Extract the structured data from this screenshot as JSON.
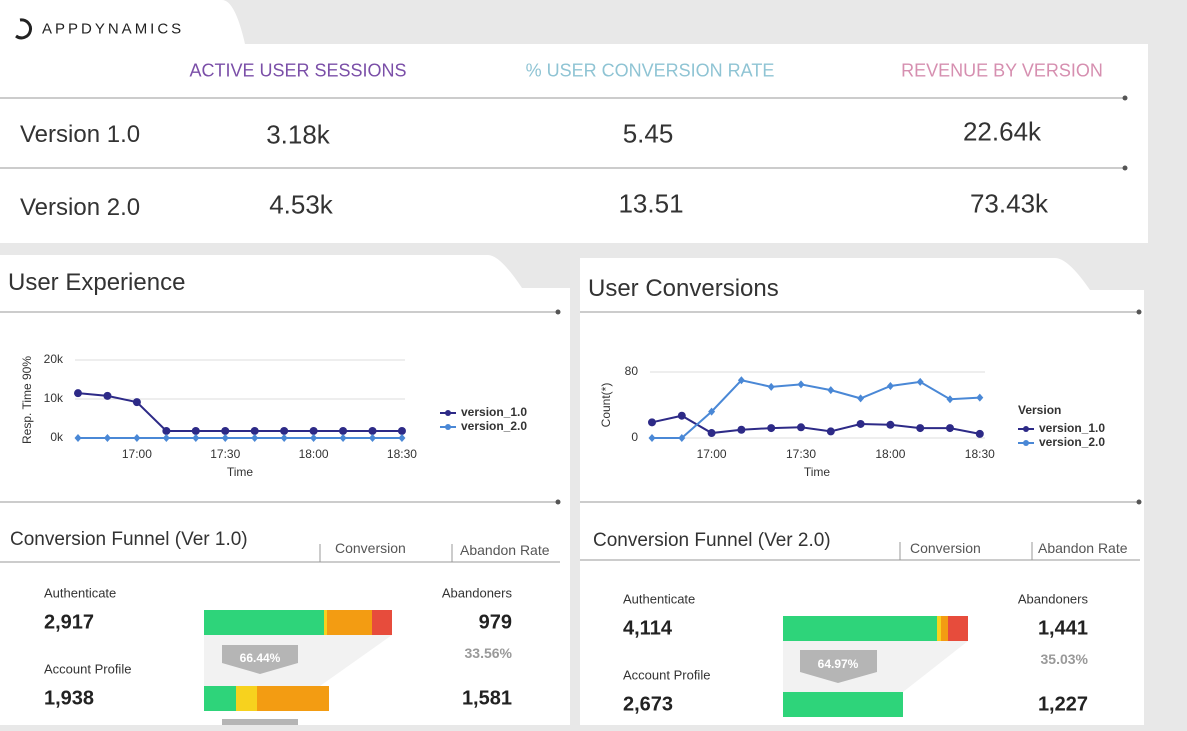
{
  "header": {
    "logo": "APPDYNAMICS"
  },
  "summary": {
    "columns": [
      "ACTIVE USER SESSIONS",
      "% USER CONVERSION RATE",
      "REVENUE BY VERSION"
    ],
    "rows": [
      {
        "label": "Version 1.0",
        "values": [
          "3.18k",
          "5.45",
          "22.64k"
        ]
      },
      {
        "label": "Version 2.0",
        "values": [
          "4.53k",
          "13.51",
          "73.43k"
        ]
      }
    ]
  },
  "user_experience": {
    "title": "User Experience",
    "chart": {
      "type": "line",
      "ylabel": "Resp. Time 90%",
      "xlabel": "Time",
      "x": [
        "16:40",
        "16:50",
        "17:00",
        "17:10",
        "17:20",
        "17:30",
        "17:40",
        "17:50",
        "18:00",
        "18:10",
        "18:20",
        "18:30"
      ],
      "xticks": [
        "17:00",
        "17:30",
        "18:00",
        "18:30"
      ],
      "ylim": [
        0,
        20000
      ],
      "yticks": [
        {
          "value": 0,
          "label": "0k"
        },
        {
          "value": 10000,
          "label": "10k"
        },
        {
          "value": 20000,
          "label": "20k"
        }
      ],
      "grid": true,
      "series": [
        {
          "name": "version_1.0",
          "color": "#2d2a87",
          "values": [
            11500,
            10800,
            9200,
            1800,
            1800,
            1800,
            1800,
            1800,
            1800,
            1800,
            1800,
            1800
          ]
        },
        {
          "name": "version_2.0",
          "color": "#4a88d6",
          "values": [
            0,
            0,
            0,
            0,
            0,
            0,
            0,
            0,
            0,
            0,
            0,
            0
          ]
        }
      ]
    }
  },
  "user_conversions": {
    "title": "User Conversions",
    "chart": {
      "type": "line",
      "ylabel": "Count(*)",
      "xlabel": "Time",
      "legend_title": "Version",
      "x": [
        "16:40",
        "16:50",
        "17:00",
        "17:10",
        "17:20",
        "17:30",
        "17:40",
        "17:50",
        "18:00",
        "18:10",
        "18:20",
        "18:30"
      ],
      "xticks": [
        "17:00",
        "17:30",
        "18:00",
        "18:30"
      ],
      "ylim": [
        0,
        80
      ],
      "yticks": [
        0,
        80
      ],
      "grid": true,
      "series": [
        {
          "name": "version_1.0",
          "color": "#2d2a87",
          "values": [
            19,
            27,
            6,
            10,
            12,
            13,
            8,
            17,
            16,
            12,
            12,
            5
          ]
        },
        {
          "name": "version_2.0",
          "color": "#4a88d6",
          "values": [
            0,
            0,
            32,
            70,
            62,
            65,
            58,
            48,
            63,
            68,
            47,
            49
          ]
        }
      ]
    }
  },
  "funnel_v1": {
    "title": "Conversion Funnel (Ver 1.0)",
    "columns": [
      "Conversion",
      "Abandon Rate"
    ],
    "abandoners_label": "Abandoners",
    "steps": [
      {
        "label": "Authenticate",
        "count": "2,917",
        "abandoners": "979",
        "abandon_pct": "33.56%",
        "conversion": "66.44%"
      },
      {
        "label": "Account Profile",
        "count": "1,938",
        "abandoners": "1,581"
      }
    ]
  },
  "funnel_v2": {
    "title": "Conversion Funnel (Ver 2.0)",
    "columns": [
      "Conversion",
      "Abandon Rate"
    ],
    "abandoners_label": "Abandoners",
    "steps": [
      {
        "label": "Authenticate",
        "count": "4,114",
        "abandoners": "1,441",
        "abandon_pct": "35.03%",
        "conversion": "64.97%"
      },
      {
        "label": "Account Profile",
        "count": "2,673",
        "abandoners": "1,227"
      }
    ]
  }
}
